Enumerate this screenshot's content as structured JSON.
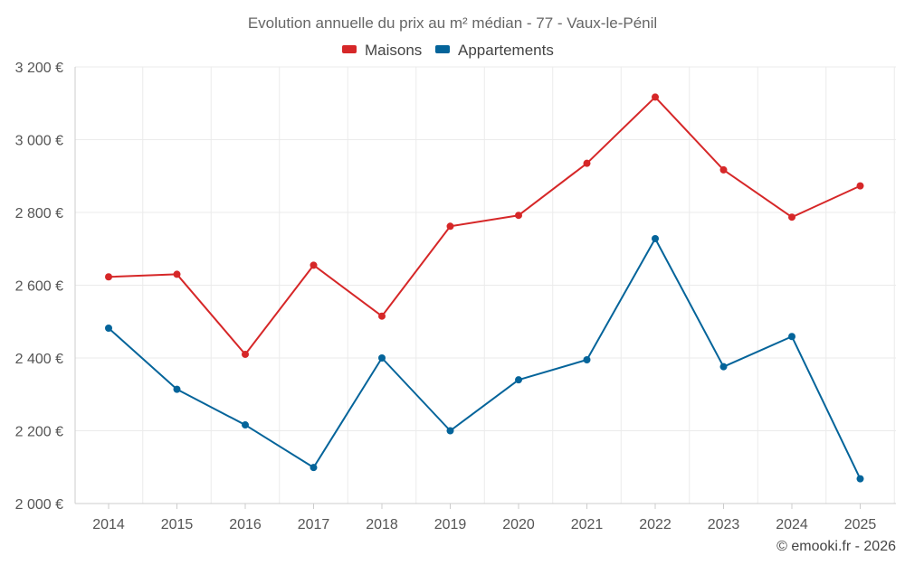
{
  "chart_data": {
    "type": "line",
    "title": "Evolution annuelle du prix au m² médian - 77 - Vaux-le-Pénil",
    "categories": [
      "2014",
      "2015",
      "2016",
      "2017",
      "2018",
      "2019",
      "2020",
      "2021",
      "2022",
      "2023",
      "2024",
      "2025"
    ],
    "series": [
      {
        "name": "Maisons",
        "color": "#d62728",
        "values": [
          2623,
          2630,
          2410,
          2655,
          2515,
          2762,
          2792,
          2935,
          3117,
          2917,
          2787,
          2873
        ]
      },
      {
        "name": "Appartements",
        "color": "#04649a",
        "values": [
          2482,
          2314,
          2216,
          2099,
          2400,
          2200,
          2340,
          2395,
          2728,
          2376,
          2459,
          2068
        ]
      }
    ],
    "ylim": [
      2000,
      3200
    ],
    "yticks": [
      2000,
      2200,
      2400,
      2600,
      2800,
      3000,
      3200
    ],
    "ytick_labels": [
      "2 000 €",
      "2 200 €",
      "2 400 €",
      "2 600 €",
      "2 800 €",
      "3 000 €",
      "3 200 €"
    ],
    "xlabel": "",
    "ylabel": "",
    "grid": true,
    "legend_position": "top-center"
  },
  "credit": "© emooki.fr - 2026"
}
